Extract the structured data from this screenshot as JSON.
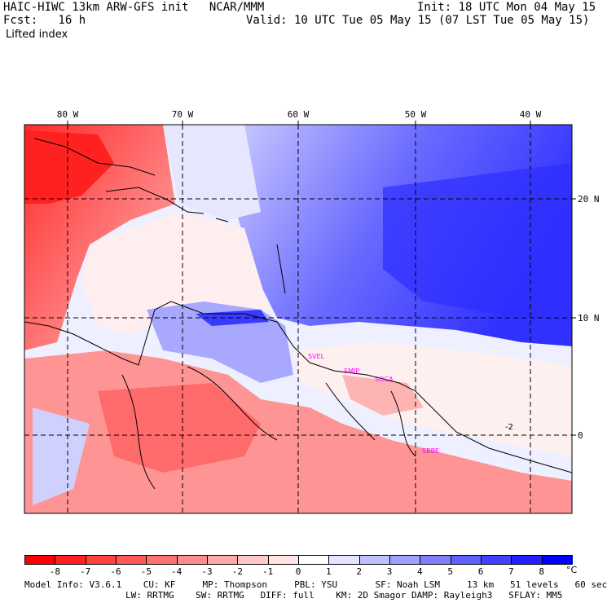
{
  "header": {
    "title_left": "HAIC-HIWC 13km ARW-GFS init   NCAR/MMM",
    "fcst_label": "Fcst:   16 h",
    "field": "Lifted index",
    "init": "Init: 18 UTC Mon 04 May 15",
    "valid": "Valid: 10 UTC Tue 05 May 15 (07 LST Tue 05 May 15)"
  },
  "map": {
    "lon_labels": [
      "80 W",
      "70 W",
      "60 W",
      "50 W",
      "40 W"
    ],
    "lat_labels": [
      "20 N",
      "10 N",
      "0"
    ],
    "stations": [
      "SVEL",
      "SMJP",
      "SOCA",
      "SBBE"
    ],
    "contour_label": "-2",
    "colors": {
      "neg_strong": "#ff0000",
      "neg_mid": "#ff8080",
      "neutral": "#ffffff",
      "pos_mid": "#8080ff",
      "pos_strong": "#0000ff",
      "station": "#ff00ff"
    }
  },
  "colorbar": {
    "values": [
      "-8",
      "-7",
      "-6",
      "-5",
      "-4",
      "-3",
      "-2",
      "-1",
      "0",
      "1",
      "2",
      "3",
      "4",
      "5",
      "6",
      "7",
      "8"
    ],
    "unit": "°C",
    "colors": [
      "#ff0000",
      "#ff2020",
      "#ff4040",
      "#ff5858",
      "#ff7070",
      "#ff8c8c",
      "#ffa8a8",
      "#ffc8c8",
      "#ffe4e4",
      "#ffffff",
      "#e4e4ff",
      "#c0c0ff",
      "#a0a0ff",
      "#8080ff",
      "#6060ff",
      "#4040ff",
      "#2020ff",
      "#0000ff"
    ]
  },
  "footer": {
    "line1": "Model Info: V3.6.1    CU: KF     MP: Thompson     PBL: YSU       SF: Noah LSM     13 km   51 levels   60 sec",
    "line2": "LW: RRTMG    SW: RRTMG   DIFF: full    KM: 2D Smagor DAMP: Rayleigh3   SFLAY: MM5"
  }
}
